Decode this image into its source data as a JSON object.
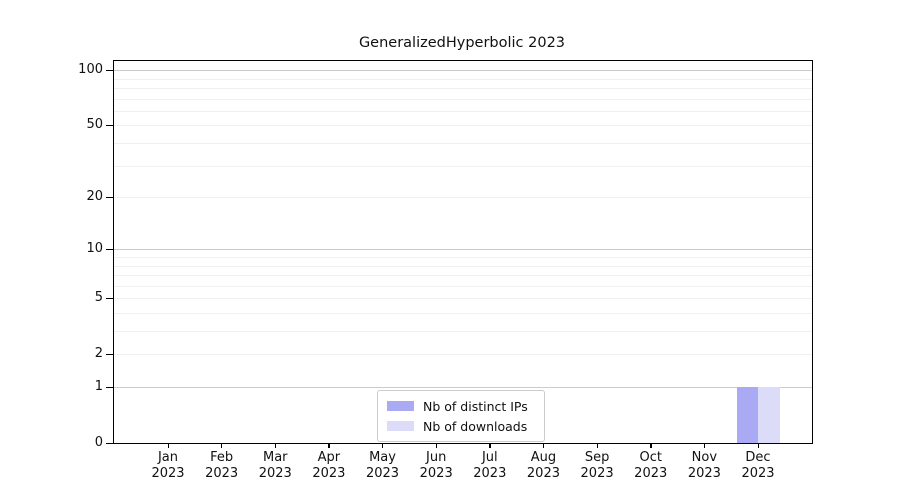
{
  "chart_data": {
    "type": "bar",
    "title": "GeneralizedHyperbolic 2023",
    "categories": [
      "Jan 2023",
      "Feb 2023",
      "Mar 2023",
      "Apr 2023",
      "May 2023",
      "Jun 2023",
      "Jul 2023",
      "Aug 2023",
      "Sep 2023",
      "Oct 2023",
      "Nov 2023",
      "Dec 2023"
    ],
    "series": [
      {
        "name": "Nb of distinct IPs",
        "color": "#a9a9f4",
        "values": [
          0,
          0,
          0,
          0,
          0,
          0,
          0,
          0,
          0,
          0,
          0,
          1
        ]
      },
      {
        "name": "Nb of downloads",
        "color": "#dcdcf8",
        "values": [
          0,
          0,
          0,
          0,
          0,
          0,
          0,
          0,
          0,
          0,
          0,
          1
        ]
      }
    ],
    "xlabel": "",
    "ylabel": "",
    "yscale": "log1p",
    "yticks": [
      0,
      1,
      2,
      5,
      10,
      20,
      50,
      100
    ],
    "ylim": [
      0,
      113
    ],
    "grid": true,
    "legend_position": "lower center"
  },
  "colors": {
    "major_grid": "#cccccc",
    "minor_grid": "#f0f0f0",
    "spine": "#000000"
  }
}
